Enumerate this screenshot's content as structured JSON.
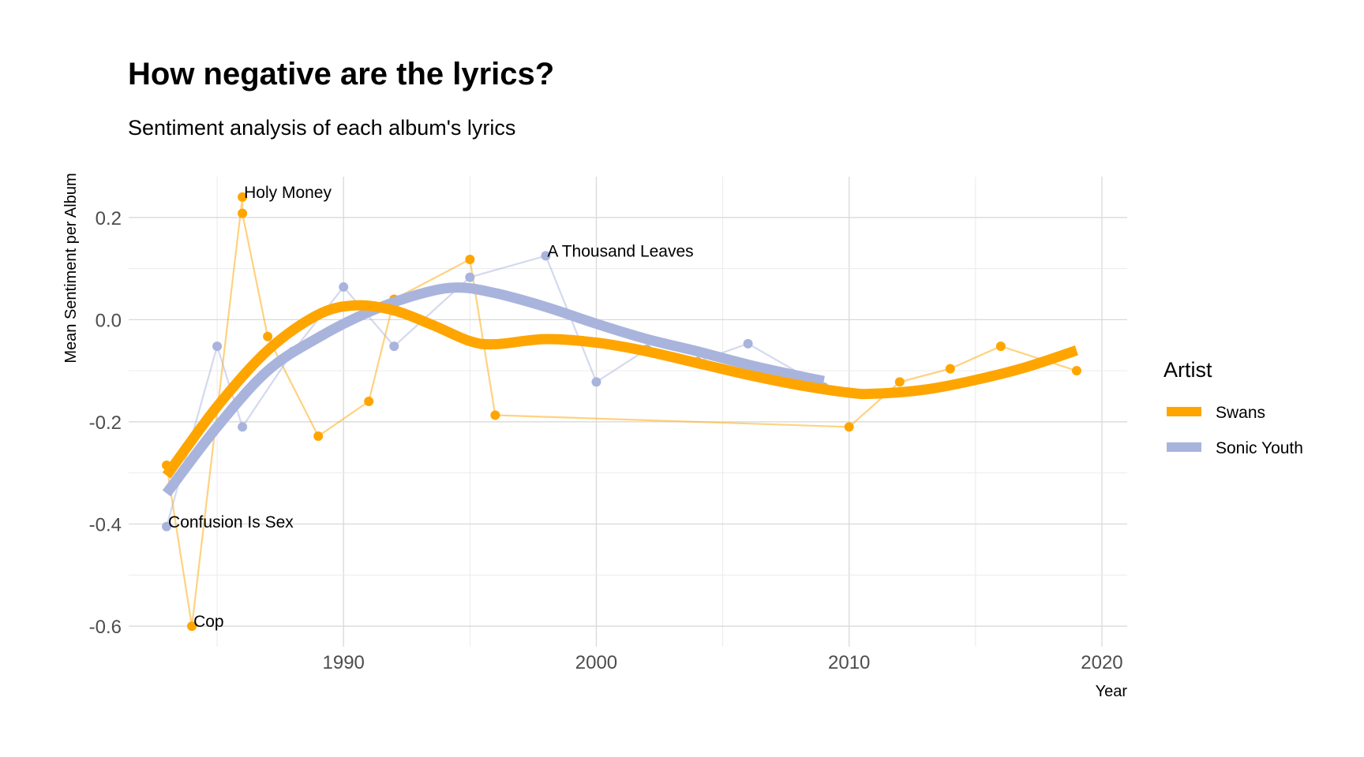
{
  "chart_data": {
    "type": "line",
    "title": "How negative are the lyrics?",
    "subtitle": "Sentiment analysis of each album's lyrics",
    "xlabel": "Year",
    "ylabel": "Mean Sentiment per Album",
    "xlim": [
      1981.5,
      2021
    ],
    "ylim": [
      -0.64,
      0.28
    ],
    "x_ticks": [
      1990,
      2000,
      2010,
      2020
    ],
    "x_tick_labels": [
      "1990",
      "2000",
      "2010",
      "2020"
    ],
    "y_ticks": [
      -0.6,
      -0.4,
      -0.2,
      0.0,
      0.2
    ],
    "y_tick_labels": [
      "-0.6",
      "-0.4",
      "-0.2",
      "0.0",
      "0.2"
    ],
    "grid": true,
    "legend": {
      "title": "Artist",
      "position": "right"
    },
    "series": [
      {
        "name": "Swans",
        "color": "#FFA500",
        "points": [
          {
            "x": 1983,
            "y": -0.285
          },
          {
            "x": 1984,
            "y": -0.6
          },
          {
            "x": 1986,
            "y": 0.24
          },
          {
            "x": 1986,
            "y": 0.208
          },
          {
            "x": 1987,
            "y": -0.033
          },
          {
            "x": 1989,
            "y": -0.228
          },
          {
            "x": 1991,
            "y": -0.16
          },
          {
            "x": 1992,
            "y": 0.04
          },
          {
            "x": 1995,
            "y": 0.118
          },
          {
            "x": 1996,
            "y": -0.187
          },
          {
            "x": 2010,
            "y": -0.21
          },
          {
            "x": 2012,
            "y": -0.122
          },
          {
            "x": 2014,
            "y": -0.096
          },
          {
            "x": 2016,
            "y": -0.052
          },
          {
            "x": 2019,
            "y": -0.1
          }
        ],
        "smooth": [
          {
            "x": 1983,
            "y": -0.305
          },
          {
            "x": 1985,
            "y": -0.17
          },
          {
            "x": 1987,
            "y": -0.06
          },
          {
            "x": 1989,
            "y": 0.01
          },
          {
            "x": 1990.5,
            "y": 0.028
          },
          {
            "x": 1992,
            "y": 0.018
          },
          {
            "x": 1993.5,
            "y": -0.01
          },
          {
            "x": 1995,
            "y": -0.042
          },
          {
            "x": 1996,
            "y": -0.048
          },
          {
            "x": 1998,
            "y": -0.038
          },
          {
            "x": 2000,
            "y": -0.045
          },
          {
            "x": 2002,
            "y": -0.062
          },
          {
            "x": 2004,
            "y": -0.085
          },
          {
            "x": 2006,
            "y": -0.108
          },
          {
            "x": 2008,
            "y": -0.128
          },
          {
            "x": 2010,
            "y": -0.143
          },
          {
            "x": 2011,
            "y": -0.145
          },
          {
            "x": 2013,
            "y": -0.137
          },
          {
            "x": 2015,
            "y": -0.118
          },
          {
            "x": 2017,
            "y": -0.093
          },
          {
            "x": 2019,
            "y": -0.06
          }
        ]
      },
      {
        "name": "Sonic Youth",
        "color": "#A9B4DD",
        "points": [
          {
            "x": 1983,
            "y": -0.405
          },
          {
            "x": 1985,
            "y": -0.052
          },
          {
            "x": 1986,
            "y": -0.21
          },
          {
            "x": 1988,
            "y": -0.062
          },
          {
            "x": 1990,
            "y": 0.064
          },
          {
            "x": 1992,
            "y": -0.052
          },
          {
            "x": 1995,
            "y": 0.083
          },
          {
            "x": 1998,
            "y": 0.125
          },
          {
            "x": 2000,
            "y": -0.122
          },
          {
            "x": 2002,
            "y": -0.058
          },
          {
            "x": 2004,
            "y": -0.082
          },
          {
            "x": 2006,
            "y": -0.047
          },
          {
            "x": 2009,
            "y": -0.132
          }
        ],
        "smooth": [
          {
            "x": 1983,
            "y": -0.34
          },
          {
            "x": 1985,
            "y": -0.21
          },
          {
            "x": 1987,
            "y": -0.1
          },
          {
            "x": 1989,
            "y": -0.035
          },
          {
            "x": 1991,
            "y": 0.015
          },
          {
            "x": 1993,
            "y": 0.05
          },
          {
            "x": 1994.5,
            "y": 0.063
          },
          {
            "x": 1996,
            "y": 0.052
          },
          {
            "x": 1998,
            "y": 0.025
          },
          {
            "x": 2000,
            "y": -0.008
          },
          {
            "x": 2002,
            "y": -0.038
          },
          {
            "x": 2004,
            "y": -0.062
          },
          {
            "x": 2006,
            "y": -0.088
          },
          {
            "x": 2008,
            "y": -0.11
          },
          {
            "x": 2009,
            "y": -0.12
          }
        ]
      }
    ],
    "annotations": [
      {
        "text": "Holy Money",
        "x": 1986,
        "y": 0.24
      },
      {
        "text": "A Thousand Leaves",
        "x": 1998,
        "y": 0.125
      },
      {
        "text": "Confusion Is Sex",
        "x": 1983,
        "y": -0.405
      },
      {
        "text": "Cop",
        "x": 1984,
        "y": -0.6
      }
    ]
  }
}
